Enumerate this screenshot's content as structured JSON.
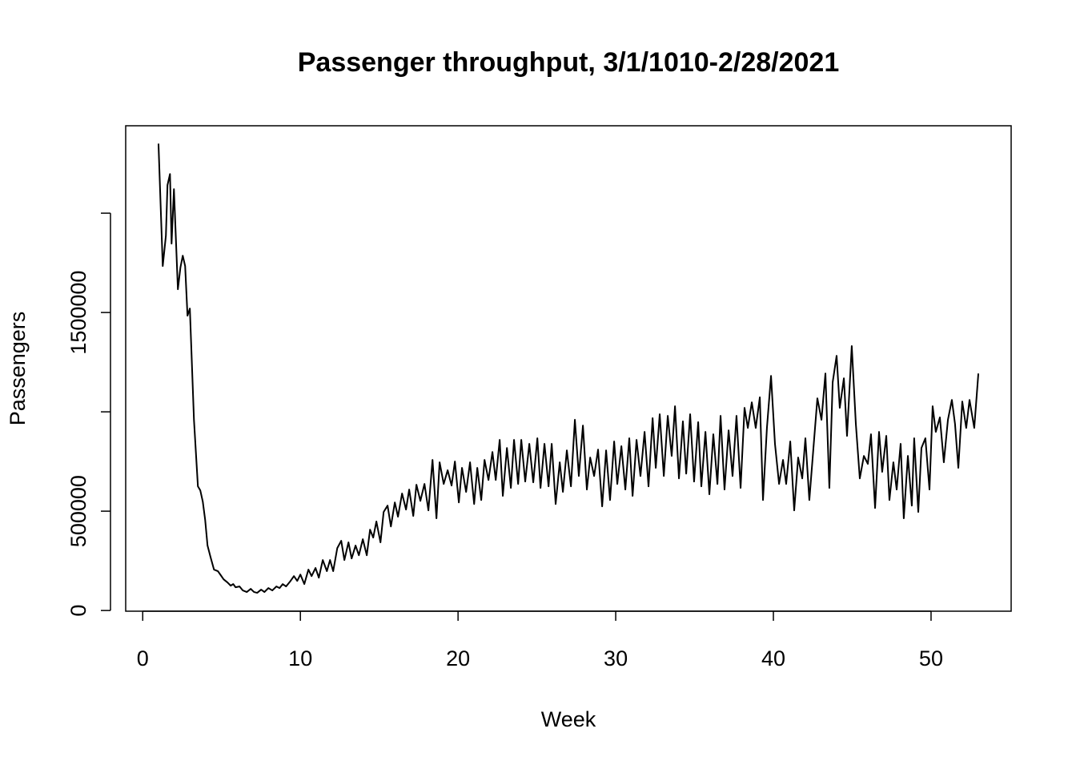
{
  "chart_data": {
    "type": "line",
    "title": "Passenger throughput, 3/1/1010-2/28/2021",
    "x_label": "Week",
    "y_label": "Passengers",
    "xlim": [
      -1.08,
      55.08
    ],
    "xticks": [
      0,
      10,
      20,
      30,
      40,
      50
    ],
    "ylim": [
      -3500,
      2440000
    ],
    "yticks": [
      0,
      500000,
      {
        "value": 1000000,
        "label": null
      },
      1500000,
      {
        "value": 2000000,
        "label": null
      }
    ],
    "grid": false,
    "x": [
      1.0,
      1.27,
      1.47,
      1.57,
      1.73,
      1.83,
      1.98,
      2.23,
      2.39,
      2.54,
      2.69,
      2.84,
      2.99,
      3.25,
      3.5,
      3.65,
      3.81,
      3.96,
      4.11,
      4.31,
      4.52,
      4.77,
      4.92,
      5.13,
      5.38,
      5.58,
      5.74,
      5.89,
      6.14,
      6.35,
      6.6,
      6.85,
      7.06,
      7.26,
      7.51,
      7.72,
      7.97,
      8.22,
      8.48,
      8.68,
      8.88,
      9.09,
      9.34,
      9.59,
      9.8,
      10.0,
      10.25,
      10.51,
      10.71,
      10.96,
      11.17,
      11.42,
      11.68,
      11.88,
      12.08,
      12.34,
      12.59,
      12.79,
      13.05,
      13.25,
      13.5,
      13.71,
      13.96,
      14.21,
      14.42,
      14.62,
      14.82,
      15.08,
      15.28,
      15.53,
      15.74,
      15.99,
      16.19,
      16.45,
      16.7,
      16.9,
      17.16,
      17.36,
      17.61,
      17.87,
      18.12,
      18.38,
      18.63,
      18.83,
      19.09,
      19.34,
      19.59,
      19.8,
      20.05,
      20.25,
      20.51,
      20.76,
      21.02,
      21.22,
      21.47,
      21.68,
      21.93,
      22.18,
      22.39,
      22.64,
      22.84,
      23.1,
      23.35,
      23.55,
      23.81,
      24.01,
      24.26,
      24.52,
      24.77,
      25.03,
      25.23,
      25.48,
      25.74,
      25.94,
      26.19,
      26.45,
      26.65,
      26.9,
      27.16,
      27.41,
      27.66,
      27.92,
      28.17,
      28.38,
      28.63,
      28.88,
      29.14,
      29.39,
      29.64,
      29.9,
      30.1,
      30.36,
      30.61,
      30.86,
      31.07,
      31.32,
      31.57,
      31.83,
      32.08,
      32.34,
      32.54,
      32.79,
      33.05,
      33.3,
      33.55,
      33.76,
      34.01,
      34.26,
      34.47,
      34.72,
      34.97,
      35.23,
      35.43,
      35.69,
      35.94,
      36.19,
      36.45,
      36.65,
      36.9,
      37.16,
      37.41,
      37.66,
      37.92,
      38.17,
      38.38,
      38.63,
      38.88,
      39.14,
      39.34,
      39.59,
      39.85,
      40.1,
      40.36,
      40.61,
      40.81,
      41.07,
      41.32,
      41.57,
      41.83,
      42.03,
      42.28,
      42.54,
      42.79,
      43.05,
      43.3,
      43.55,
      43.76,
      44.01,
      44.21,
      44.47,
      44.67,
      44.97,
      45.23,
      45.48,
      45.74,
      45.99,
      46.19,
      46.45,
      46.7,
      46.9,
      47.16,
      47.36,
      47.61,
      47.82,
      48.07,
      48.27,
      48.53,
      48.78,
      48.93,
      49.19,
      49.39,
      49.64,
      49.9,
      50.1,
      50.3,
      50.56,
      50.81,
      51.07,
      51.32,
      51.52,
      51.73,
      51.98,
      52.23,
      52.44,
      52.74,
      53.0
    ],
    "series": [
      {
        "color": "#000000",
        "values": [
          2350000,
          1734000,
          1887000,
          2141000,
          2197000,
          1847000,
          2121000,
          1617000,
          1726000,
          1786000,
          1734000,
          1484000,
          1520000,
          960000,
          625000,
          605000,
          548000,
          456000,
          327000,
          266000,
          206000,
          198000,
          181000,
          157000,
          141000,
          125000,
          133000,
          117000,
          121000,
          101000,
          93000,
          109000,
          93000,
          89000,
          105000,
          93000,
          113000,
          101000,
          121000,
          113000,
          133000,
          121000,
          145000,
          173000,
          149000,
          181000,
          133000,
          206000,
          173000,
          214000,
          165000,
          254000,
          198000,
          254000,
          198000,
          314000,
          351000,
          254000,
          343000,
          262000,
          327000,
          278000,
          359000,
          278000,
          407000,
          367000,
          448000,
          343000,
          496000,
          528000,
          423000,
          544000,
          472000,
          589000,
          508000,
          609000,
          476000,
          633000,
          552000,
          637000,
          504000,
          758000,
          464000,
          746000,
          637000,
          706000,
          629000,
          750000,
          544000,
          718000,
          597000,
          746000,
          536000,
          718000,
          556000,
          758000,
          657000,
          798000,
          657000,
          859000,
          577000,
          818000,
          617000,
          859000,
          637000,
          859000,
          649000,
          839000,
          645000,
          867000,
          617000,
          839000,
          625000,
          839000,
          536000,
          746000,
          597000,
          806000,
          625000,
          960000,
          677000,
          931000,
          609000,
          770000,
          677000,
          810000,
          524000,
          806000,
          556000,
          851000,
          637000,
          827000,
          609000,
          867000,
          577000,
          859000,
          677000,
          899000,
          625000,
          968000,
          718000,
          988000,
          677000,
          980000,
          778000,
          1028000,
          665000,
          952000,
          689000,
          988000,
          649000,
          948000,
          625000,
          899000,
          585000,
          887000,
          637000,
          980000,
          609000,
          907000,
          677000,
          980000,
          617000,
          1020000,
          919000,
          1048000,
          919000,
          1073000,
          556000,
          919000,
          1181000,
          839000,
          637000,
          758000,
          637000,
          851000,
          504000,
          770000,
          665000,
          867000,
          556000,
          818000,
          1068000,
          960000,
          1193000,
          617000,
          1149000,
          1282000,
          1020000,
          1169000,
          879000,
          1331000,
          939000,
          665000,
          778000,
          738000,
          887000,
          516000,
          899000,
          698000,
          879000,
          556000,
          746000,
          609000,
          839000,
          464000,
          778000,
          528000,
          867000,
          496000,
          818000,
          867000,
          609000,
          1028000,
          899000,
          972000,
          746000,
          960000,
          1060000,
          939000,
          718000,
          1052000,
          919000,
          1060000,
          919000,
          1193000
        ]
      }
    ]
  }
}
